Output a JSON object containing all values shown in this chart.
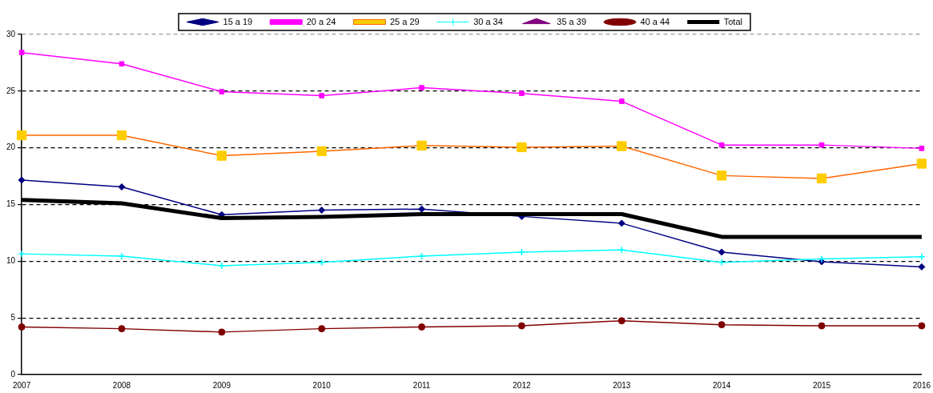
{
  "chart_data": {
    "type": "line",
    "categories": [
      "2007",
      "2008",
      "2009",
      "2010",
      "2011",
      "2012",
      "2013",
      "2014",
      "2015",
      "2016"
    ],
    "ylim": [
      0,
      30
    ],
    "yticks": [
      0,
      5,
      10,
      15,
      20,
      25,
      30
    ],
    "grid": "y",
    "legend": "top",
    "line_style": "solid",
    "series": [
      {
        "name": "15 a 19",
        "color": "#000080",
        "marker": "diamond",
        "values": [
          17.15,
          16.55,
          14.1,
          14.5,
          14.6,
          13.95,
          13.35,
          10.8,
          9.95,
          9.5
        ]
      },
      {
        "name": "20 a 24",
        "color": "#ff00ff",
        "marker": "square",
        "values": [
          28.4,
          27.4,
          24.95,
          24.6,
          25.3,
          24.8,
          24.1,
          20.25,
          20.25,
          19.95
        ]
      },
      {
        "name": "25 a 29",
        "color": "#ff6600",
        "colors": [
          "#ffcc00",
          "#ffcc00",
          "#ffcc00",
          "#ffcc00",
          "#ffcc00",
          "#ffcc00",
          "#ffcc00",
          "#ffcc00",
          "#ffcc00",
          "#ffcc00"
        ],
        "marker": "square",
        "values": [
          21.1,
          21.1,
          19.3,
          19.7,
          20.2,
          20.05,
          20.15,
          17.55,
          17.3,
          18.6
        ]
      },
      {
        "name": "30 a 34",
        "color": "#00ffff",
        "marker": "cross",
        "values": [
          10.65,
          10.45,
          9.6,
          9.9,
          10.45,
          10.8,
          11.0,
          9.9,
          10.2,
          10.4
        ]
      },
      {
        "name": "35 a 39",
        "color": "#800080",
        "marker": "triangle",
        "values": [
          null,
          null,
          null,
          null,
          null,
          null,
          null,
          null,
          null,
          null
        ]
      },
      {
        "name": "40 a 44",
        "color": "#800000",
        "marker": "circle",
        "values": [
          4.2,
          4.05,
          3.75,
          4.05,
          4.2,
          4.3,
          4.75,
          4.4,
          4.3,
          4.3
        ]
      },
      {
        "name": "Total",
        "color": "#000000",
        "marker": "none",
        "values": [
          15.4,
          15.1,
          13.8,
          13.9,
          14.15,
          14.15,
          14.15,
          12.15,
          12.15,
          12.15
        ]
      }
    ]
  }
}
